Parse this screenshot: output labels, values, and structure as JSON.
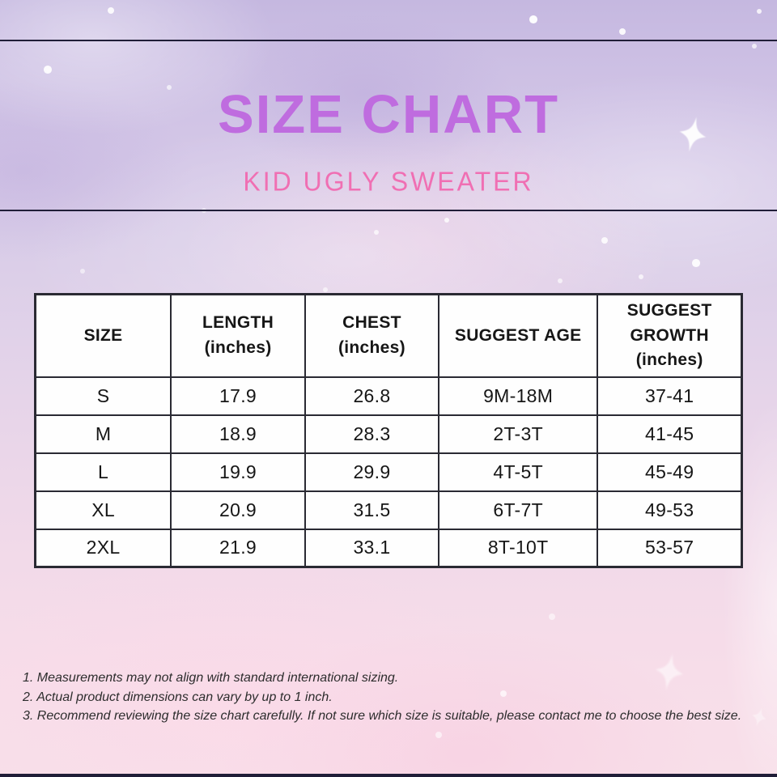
{
  "header": {
    "title": "SIZE CHART",
    "subtitle": "KID UGLY SWEATER"
  },
  "table": {
    "headers": [
      {
        "lines": [
          "SIZE"
        ]
      },
      {
        "lines": [
          "LENGTH",
          "(inches)"
        ]
      },
      {
        "lines": [
          "CHEST",
          "(inches)"
        ]
      },
      {
        "lines": [
          "SUGGEST AGE"
        ]
      },
      {
        "lines": [
          "SUGGEST",
          "GROWTH",
          "(inches)"
        ]
      }
    ],
    "rows": [
      [
        "S",
        "17.9",
        "26.8",
        "9M-18M",
        "37-41"
      ],
      [
        "M",
        "18.9",
        "28.3",
        "2T-3T",
        "41-45"
      ],
      [
        "L",
        "19.9",
        "29.9",
        "4T-5T",
        "45-49"
      ],
      [
        "XL",
        "20.9",
        "31.5",
        "6T-7T",
        "49-53"
      ],
      [
        "2XL",
        "21.9",
        "33.1",
        "8T-10T",
        "53-57"
      ]
    ]
  },
  "notes": [
    "1. Measurements may not align with standard international sizing.",
    "2. Actual product dimensions can vary by up to 1 inch.",
    "3. Recommend reviewing the size chart carefully. If not sure which size is suitable, please contact me to choose the best size."
  ],
  "icons": {
    "sparkle": "sparkle-star-icon"
  },
  "colors": {
    "title": "#bf6cdf",
    "subtitle": "#f06fb3",
    "rule": "#201e38",
    "border": "#2a2a33",
    "note": "#2d2d2d",
    "background_top": "#c5b8e0",
    "background_bottom": "#f8dfe9",
    "cell_background": "#fefefe"
  },
  "chart_data": {
    "type": "table",
    "title": "SIZE CHART",
    "subtitle": "KID UGLY SWEATER",
    "columns": [
      "SIZE",
      "LENGTH (inches)",
      "CHEST (inches)",
      "SUGGEST AGE",
      "SUGGEST GROWTH (inches)"
    ],
    "rows": [
      [
        "S",
        17.9,
        26.8,
        "9M-18M",
        "37-41"
      ],
      [
        "M",
        18.9,
        28.3,
        "2T-3T",
        "41-45"
      ],
      [
        "L",
        19.9,
        29.9,
        "4T-5T",
        "45-49"
      ],
      [
        "XL",
        20.9,
        31.5,
        "6T-7T",
        "49-53"
      ],
      [
        "2XL",
        21.9,
        33.1,
        "8T-10T",
        "53-57"
      ]
    ],
    "footnotes": [
      "1. Measurements may not align with standard international sizing.",
      "2. Actual product dimensions can vary by up to 1 inch.",
      "3. Recommend reviewing the size chart carefully. If not sure which size is suitable, please contact me to choose the best size."
    ]
  }
}
